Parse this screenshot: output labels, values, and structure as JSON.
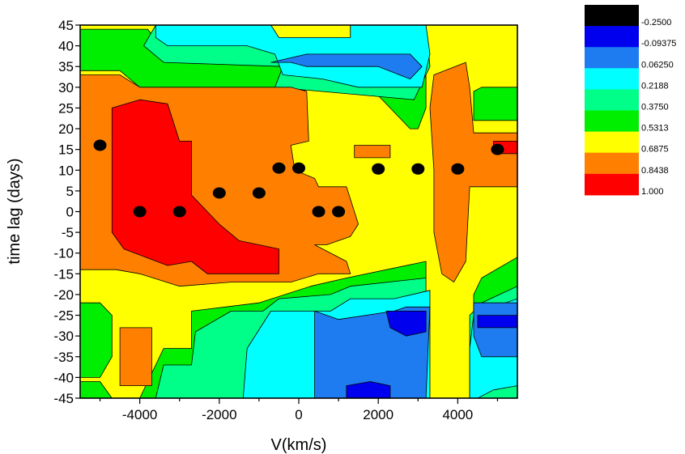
{
  "chart_data": {
    "type": "heatmap",
    "subtype": "filled-contour",
    "xlabel": "V(km/s)",
    "ylabel": "time lag (days)",
    "xlim": [
      -5500,
      5500
    ],
    "ylim": [
      -45,
      45
    ],
    "x_ticks": [
      -4000,
      -2000,
      0,
      2000,
      4000
    ],
    "x_tick_labels": [
      "-4000",
      "-2000",
      "0",
      "2000",
      "4000"
    ],
    "y_ticks": [
      -45,
      -40,
      -35,
      -30,
      -25,
      -20,
      -15,
      -10,
      -5,
      0,
      5,
      10,
      15,
      20,
      25,
      30,
      35,
      40,
      45
    ],
    "y_tick_labels": [
      "-45",
      "-40",
      "-35",
      "-30",
      "-25",
      "-20",
      "-15",
      "-10",
      "-5",
      "0",
      "5",
      "10",
      "15",
      "20",
      "25",
      "30",
      "35",
      "40",
      "45"
    ],
    "legend": {
      "placement": "right",
      "levels": [
        {
          "label": "-0.2500",
          "color": "#000000"
        },
        {
          "label": "-0.09375",
          "color": "#0000ee"
        },
        {
          "label": "0.06250",
          "color": "#1e7cf0"
        },
        {
          "label": "0.2188",
          "color": "#00ffff"
        },
        {
          "label": "0.3750",
          "color": "#00ff88"
        },
        {
          "label": "0.5313",
          "color": "#00ee00"
        },
        {
          "label": "0.6875",
          "color": "#ffff00"
        },
        {
          "label": "0.8438",
          "color": "#ff8000"
        },
        {
          "label": "1.000",
          "color": "#ff0000"
        }
      ]
    },
    "peaks": {
      "name": "",
      "points": [
        {
          "x": -5000,
          "y": 16
        },
        {
          "x": -4000,
          "y": 0
        },
        {
          "x": -3000,
          "y": 0
        },
        {
          "x": -2000,
          "y": 4.5
        },
        {
          "x": -1000,
          "y": 4.5
        },
        {
          "x": -500,
          "y": 10.5
        },
        {
          "x": 0,
          "y": 10.5
        },
        {
          "x": 500,
          "y": 0
        },
        {
          "x": 1000,
          "y": 0
        },
        {
          "x": 2000,
          "y": 10.3
        },
        {
          "x": 3000,
          "y": 10.3
        },
        {
          "x": 4000,
          "y": 10.3
        },
        {
          "x": 5000,
          "y": 15
        }
      ]
    },
    "regions": [
      {
        "level": "0.6875",
        "points": [
          [
            -5500,
            45
          ],
          [
            5500,
            45
          ],
          [
            5500,
            -45
          ],
          [
            -5500,
            -45
          ]
        ]
      },
      {
        "level": "0.5313",
        "points": [
          [
            -5500,
            44
          ],
          [
            -3800,
            44
          ],
          [
            -3500,
            40
          ],
          [
            -700,
            40
          ],
          [
            -500,
            35
          ],
          [
            -400,
            40
          ],
          [
            1400,
            40
          ],
          [
            1300,
            45
          ],
          [
            3200,
            45
          ],
          [
            3200,
            25
          ],
          [
            3000,
            20
          ],
          [
            2800,
            20
          ],
          [
            1300,
            35
          ],
          [
            -300,
            27
          ],
          [
            -4000,
            30
          ],
          [
            -4500,
            34
          ],
          [
            -5500,
            34
          ]
        ]
      },
      {
        "level": "0.5313",
        "points": [
          [
            -5500,
            -22
          ],
          [
            -5000,
            -22
          ],
          [
            -4700,
            -25
          ],
          [
            -4700,
            -35
          ],
          [
            -5000,
            -40
          ],
          [
            -5500,
            -40
          ]
        ]
      },
      {
        "level": "0.5313",
        "points": [
          [
            -4000,
            -45
          ],
          [
            -3400,
            -33
          ],
          [
            -2700,
            -33
          ],
          [
            -2700,
            -24
          ],
          [
            -1000,
            -22
          ],
          [
            300,
            -18
          ],
          [
            1200,
            -16
          ],
          [
            3200,
            -12
          ],
          [
            3200,
            -45
          ]
        ]
      },
      {
        "level": "0.5313",
        "points": [
          [
            4400,
            -45
          ],
          [
            4400,
            -20
          ],
          [
            4600,
            -16
          ],
          [
            5500,
            -11
          ],
          [
            5500,
            -45
          ]
        ]
      },
      {
        "level": "0.5313",
        "points": [
          [
            4400,
            22
          ],
          [
            4400,
            29
          ],
          [
            4600,
            30
          ],
          [
            5500,
            30
          ],
          [
            5500,
            22
          ]
        ]
      },
      {
        "level": "0.5313",
        "points": [
          [
            -5500,
            -45
          ],
          [
            -4700,
            -45
          ],
          [
            -5000,
            -41
          ],
          [
            -5500,
            -41
          ]
        ]
      },
      {
        "level": "0.3750",
        "points": [
          [
            -3600,
            45
          ],
          [
            -700,
            45
          ],
          [
            -500,
            40
          ],
          [
            1300,
            40
          ],
          [
            1300,
            45
          ],
          [
            3200,
            45
          ],
          [
            3300,
            35
          ],
          [
            2900,
            27
          ],
          [
            -600,
            30
          ],
          [
            -400,
            35
          ],
          [
            -3400,
            36
          ],
          [
            -3900,
            40
          ]
        ]
      },
      {
        "level": "0.3750",
        "points": [
          [
            -3600,
            -45
          ],
          [
            -3400,
            -37
          ],
          [
            -2700,
            -37
          ],
          [
            -2600,
            -29
          ],
          [
            -1700,
            -24
          ],
          [
            -900,
            -24
          ],
          [
            -500,
            -21
          ],
          [
            800,
            -20
          ],
          [
            1300,
            -18
          ],
          [
            3200,
            -16
          ],
          [
            3200,
            -45
          ]
        ]
      },
      {
        "level": "0.3750",
        "points": [
          [
            4300,
            -45
          ],
          [
            4300,
            -25
          ],
          [
            4600,
            -22
          ],
          [
            5500,
            -18
          ],
          [
            5500,
            -45
          ]
        ]
      },
      {
        "level": "0.2188",
        "points": [
          [
            -3600,
            45
          ],
          [
            -700,
            45
          ],
          [
            -500,
            42
          ],
          [
            1300,
            42
          ],
          [
            1300,
            45
          ],
          [
            3200,
            45
          ],
          [
            3300,
            38
          ],
          [
            3100,
            30
          ],
          [
            1500,
            30
          ],
          [
            600,
            32
          ],
          [
            -400,
            33
          ],
          [
            -600,
            38
          ],
          [
            -1300,
            40
          ],
          [
            -3300,
            40
          ],
          [
            -3600,
            42
          ]
        ]
      },
      {
        "level": "0.2188",
        "points": [
          [
            -1400,
            -45
          ],
          [
            -1300,
            -33
          ],
          [
            -700,
            -24
          ],
          [
            800,
            -24
          ],
          [
            1300,
            -21
          ],
          [
            2400,
            -21
          ],
          [
            3300,
            -19
          ],
          [
            3300,
            -45
          ]
        ]
      },
      {
        "level": "0.2188",
        "points": [
          [
            4300,
            -45
          ],
          [
            4300,
            -33
          ],
          [
            4400,
            -25
          ],
          [
            4600,
            -24
          ],
          [
            5500,
            -21
          ],
          [
            5500,
            -42
          ],
          [
            4900,
            -43
          ],
          [
            4500,
            -45
          ]
        ]
      },
      {
        "level": "0.06250",
        "points": [
          [
            400,
            -45
          ],
          [
            400,
            -24
          ],
          [
            1000,
            -26
          ],
          [
            2400,
            -24
          ],
          [
            2700,
            -23
          ],
          [
            3300,
            -23
          ],
          [
            3200,
            -45
          ]
        ]
      },
      {
        "level": "0.06250",
        "points": [
          [
            -700,
            36
          ],
          [
            -200,
            36
          ],
          [
            200,
            35
          ],
          [
            2000,
            35
          ],
          [
            2800,
            32
          ],
          [
            3100,
            35
          ],
          [
            2800,
            38
          ],
          [
            2000,
            38
          ],
          [
            200,
            38
          ]
        ]
      },
      {
        "level": "0.06250",
        "points": [
          [
            4400,
            -22
          ],
          [
            5500,
            -22
          ],
          [
            5500,
            -35
          ],
          [
            4600,
            -35
          ],
          [
            4400,
            -30
          ]
        ]
      },
      {
        "level": "-0.09375",
        "points": [
          [
            2200,
            -24
          ],
          [
            3200,
            -24
          ],
          [
            3200,
            -29
          ],
          [
            2700,
            -30
          ],
          [
            2300,
            -28
          ]
        ]
      },
      {
        "level": "-0.09375",
        "points": [
          [
            1200,
            -45
          ],
          [
            1200,
            -42
          ],
          [
            1800,
            -41
          ],
          [
            2300,
            -42
          ],
          [
            2300,
            -45
          ]
        ]
      },
      {
        "level": "-0.09375",
        "points": [
          [
            4500,
            -25
          ],
          [
            5500,
            -25
          ],
          [
            5500,
            -28
          ],
          [
            4500,
            -28
          ]
        ]
      },
      {
        "level": "0.8438",
        "points": [
          [
            -5500,
            33
          ],
          [
            -4500,
            33
          ],
          [
            -4000,
            30
          ],
          [
            -200,
            30
          ],
          [
            200,
            29
          ],
          [
            250,
            17
          ],
          [
            -200,
            16
          ],
          [
            -100,
            10
          ],
          [
            400,
            8
          ],
          [
            500,
            6
          ],
          [
            1200,
            6
          ],
          [
            1400,
            0
          ],
          [
            1500,
            -3
          ],
          [
            1300,
            -6
          ],
          [
            700,
            -8
          ],
          [
            400,
            -8
          ],
          [
            1200,
            -12
          ],
          [
            1300,
            -15
          ],
          [
            500,
            -15
          ],
          [
            -200,
            -17
          ],
          [
            -1700,
            -17
          ],
          [
            -3000,
            -18
          ],
          [
            -4000,
            -15
          ],
          [
            -4600,
            -14
          ],
          [
            -5500,
            -14
          ]
        ]
      },
      {
        "level": "0.8438",
        "points": [
          [
            -4500,
            -28
          ],
          [
            -3700,
            -28
          ],
          [
            -3700,
            -35
          ],
          [
            -3700,
            -42
          ],
          [
            -4500,
            -42
          ],
          [
            -4500,
            -35
          ]
        ]
      },
      {
        "level": "0.8438",
        "points": [
          [
            1400,
            16
          ],
          [
            2300,
            16
          ],
          [
            2300,
            13
          ],
          [
            1400,
            13
          ]
        ]
      },
      {
        "level": "0.8438",
        "points": [
          [
            3400,
            33
          ],
          [
            4200,
            36
          ],
          [
            4300,
            30
          ],
          [
            4400,
            19
          ],
          [
            5500,
            19
          ],
          [
            5500,
            6
          ],
          [
            4300,
            6
          ],
          [
            4200,
            -12
          ],
          [
            3900,
            -17
          ],
          [
            3600,
            -15
          ],
          [
            3400,
            -5
          ],
          [
            3400,
            10
          ],
          [
            3300,
            25
          ]
        ]
      },
      {
        "level": "1.000",
        "points": [
          [
            -4700,
            25
          ],
          [
            -4000,
            27
          ],
          [
            -3300,
            26
          ],
          [
            -3000,
            17
          ],
          [
            -2700,
            17
          ],
          [
            -2700,
            4
          ],
          [
            -2000,
            -3
          ],
          [
            -1500,
            -7
          ],
          [
            -500,
            -9
          ],
          [
            -500,
            -15
          ],
          [
            -2300,
            -15
          ],
          [
            -2700,
            -12
          ],
          [
            -3300,
            -13
          ],
          [
            -4400,
            -9
          ],
          [
            -4700,
            -5
          ]
        ]
      },
      {
        "level": "1.000",
        "points": [
          [
            4900,
            17
          ],
          [
            5500,
            17
          ],
          [
            5500,
            14
          ],
          [
            4900,
            14
          ]
        ]
      }
    ]
  }
}
